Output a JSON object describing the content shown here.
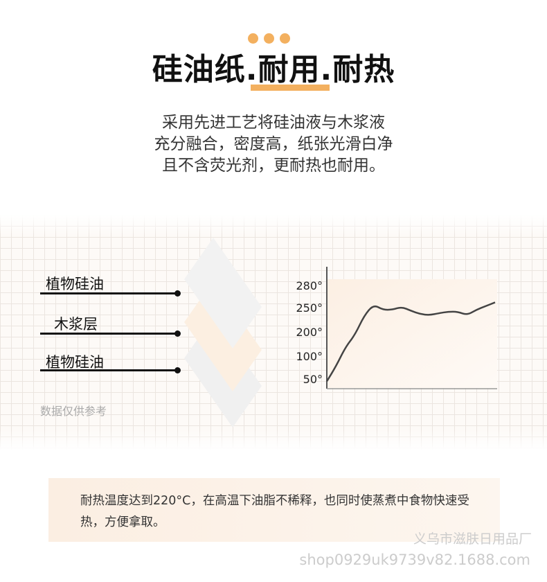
{
  "header": {
    "title_parts": [
      "硅油纸",
      "耐用",
      "耐热"
    ],
    "separator": ".",
    "description": [
      "采用先进工艺将硅油液与木浆液",
      "充分融合，密度高，纸张光滑白净",
      "且不含荧光剂，更耐热也耐用。"
    ]
  },
  "layers": {
    "items": [
      {
        "label": "植物硅油"
      },
      {
        "label": "木浆层"
      },
      {
        "label": "植物硅油"
      }
    ],
    "note": "数据仅供参考"
  },
  "chart_data": {
    "type": "line",
    "ytick_labels": [
      "280°",
      "250°",
      "200°",
      "100°",
      "50°"
    ],
    "ytick_values": [
      280,
      250,
      200,
      100,
      50
    ],
    "grid": false,
    "temps": [
      40,
      80,
      140,
      190,
      235,
      255,
      247,
      247,
      252,
      245,
      238,
      236,
      240,
      243,
      243,
      236,
      247,
      253,
      258
    ]
  },
  "footer": {
    "text": "耐热温度达到220°C，在高温下油脂不稀释，也同时使蒸煮中食物快速受热，方便拿取。",
    "watermark_company": "义乌市滋肤日用品厂",
    "watermark_shop": "shop0929uk9739v82.1688.com"
  },
  "colors": {
    "accent": "#f3b05f",
    "line": "#444444"
  }
}
